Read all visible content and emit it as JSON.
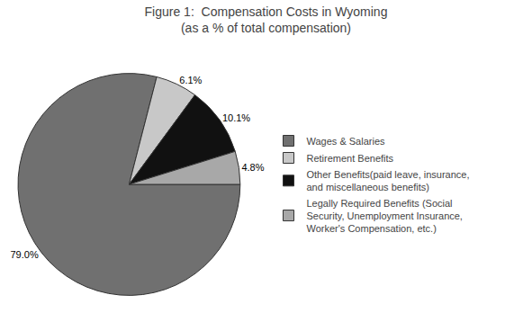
{
  "chart_data": {
    "type": "pie",
    "title": "Figure 1:  Compensation Costs in Wyoming",
    "subtitle": "(as a % of total compensation)",
    "categories": [
      "Wages & Salaries",
      "Retirement Benefits",
      "Other Benefits(paid leave, insurance,\nand miscellaneous benefits)",
      "Legally Required Benefits (Social\nSecurity, Unemployment Insurance,\nWorker's Compensation, etc.)"
    ],
    "values": [
      79.0,
      6.1,
      10.1,
      4.8
    ],
    "value_labels": [
      "79.0%",
      "6.1%",
      "10.1%",
      "4.8%"
    ],
    "colors": [
      "#707070",
      "#c8c8c8",
      "#111111",
      "#a8a8a8"
    ],
    "data_labels": true,
    "legend": "right"
  }
}
